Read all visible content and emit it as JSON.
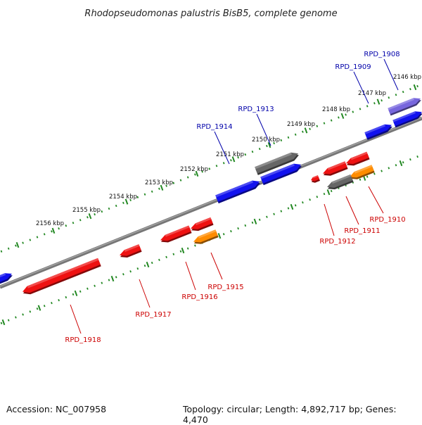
{
  "title": "Rhodopseudomonas palustris BisB5, complete genome",
  "footer": {
    "accession": "Accession: NC_007958",
    "summary": "Topology: circular; Length: 4,892,717 bp; Genes: 4,470"
  },
  "scale_labels": [
    "2146 kbp",
    "2147 kbp",
    "2148 kbp",
    "2149 kbp",
    "2150 kbp",
    "2151 kbp",
    "2152 kbp",
    "2153 kbp",
    "2154 kbp",
    "2155 kbp",
    "2156 kbp"
  ],
  "colors": {
    "forward_gene": "#1111ee",
    "reverse_gene": "#ee1111",
    "forward_label": "#0000aa",
    "reverse_label": "#cc0000",
    "gray_gene": "#666666",
    "orange_gene": "#ff8c00",
    "purple_gene": "#7766dd",
    "ticks": "#228822",
    "backbone": "#777777"
  },
  "genes": [
    {
      "id": "RPD_1908",
      "label": "RPD_1908",
      "strand": "forward",
      "color": "purple"
    },
    {
      "id": "RPD_1909",
      "label": "RPD_1909",
      "strand": "forward",
      "color": "blue"
    },
    {
      "id": "RPD_1910",
      "label": "RPD_1910",
      "strand": "reverse",
      "color": "orange"
    },
    {
      "id": "RPD_1911",
      "label": "RPD_1911",
      "strand": "reverse",
      "color": "gray"
    },
    {
      "id": "RPD_1912",
      "label": "RPD_1912",
      "strand": "reverse",
      "color": "red"
    },
    {
      "id": "RPD_1913",
      "label": "RPD_1913",
      "strand": "forward",
      "color": "gray"
    },
    {
      "id": "RPD_1914",
      "label": "RPD_1914",
      "strand": "forward",
      "color": "blue"
    },
    {
      "id": "RPD_1915",
      "label": "RPD_1915",
      "strand": "reverse",
      "color": "orange"
    },
    {
      "id": "RPD_1916",
      "label": "RPD_1916",
      "strand": "reverse",
      "color": "red"
    },
    {
      "id": "RPD_1917",
      "label": "RPD_1917",
      "strand": "reverse",
      "color": "red"
    },
    {
      "id": "RPD_1918",
      "label": "RPD_1918",
      "strand": "reverse",
      "color": "red"
    }
  ]
}
